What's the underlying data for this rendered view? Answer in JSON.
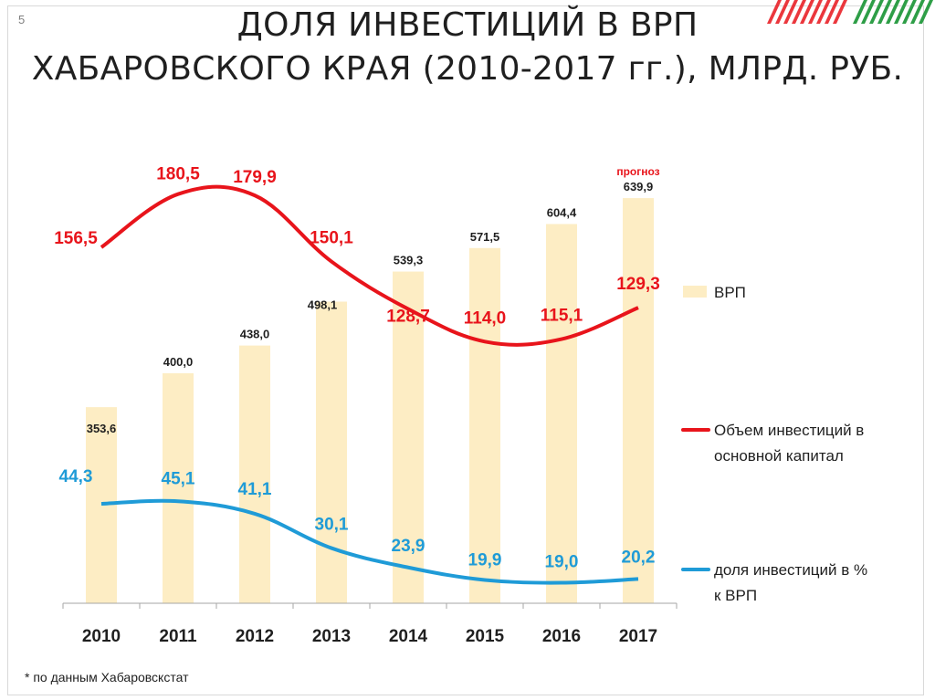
{
  "slide": {
    "number": "5",
    "title_line1": "ДОЛЯ ИНВЕСТИЦИЙ В ВРП",
    "title_line2": "ХАБАРОВСКОГО КРАЯ (2010-2017 гг.), МЛРД. РУБ.",
    "footnote": "* по данным Хабаровскстат"
  },
  "colors": {
    "bar": "#fdedc4",
    "invest_line": "#e8141b",
    "share_line": "#1f9bd7",
    "axis": "#a6a6a6",
    "deco_red": "#e8141b",
    "deco_green": "#2e9e47"
  },
  "chart_data": {
    "type": "bar",
    "categories": [
      "2010",
      "2011",
      "2012",
      "2013",
      "2014",
      "2015",
      "2016",
      "2017"
    ],
    "series": [
      {
        "name": "ВРП",
        "kind": "bar",
        "values": [
          353.6,
          400.0,
          438.0,
          498.1,
          539.3,
          571.5,
          604.4,
          639.9
        ],
        "labels": [
          "353,6",
          "400,0",
          "438,0",
          "498,1",
          "539,3",
          "571,5",
          "604,4",
          "639,9"
        ]
      },
      {
        "name": "Объем инвестиций в основной капитал",
        "kind": "line",
        "values": [
          156.5,
          180.5,
          179.9,
          150.1,
          128.7,
          114.0,
          115.1,
          129.3
        ],
        "labels": [
          "156,5",
          "180,5",
          "179,9",
          "150,1",
          "128,7",
          "114,0",
          "115,1",
          "129,3"
        ]
      },
      {
        "name": "доля инвестиций в % к ВРП",
        "kind": "line",
        "values": [
          44.3,
          45.1,
          41.1,
          30.1,
          23.9,
          19.9,
          19.0,
          20.2
        ],
        "labels": [
          "44,3",
          "45,1",
          "41,1",
          "30,1",
          "23,9",
          "19,9",
          "19,0",
          "20,2"
        ]
      }
    ],
    "annotations": [
      {
        "category": "2017",
        "text": "прогноз"
      }
    ],
    "legend_position": "right",
    "grid": false
  }
}
